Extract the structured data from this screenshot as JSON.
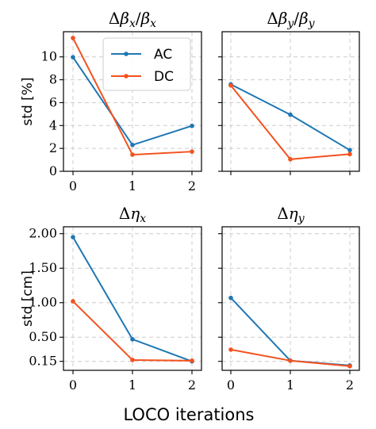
{
  "figure": {
    "xlabel": "LOCO iterations"
  },
  "legend": {
    "entries": [
      {
        "name": "AC",
        "color": "#1f77b4"
      },
      {
        "name": "DC",
        "color": "#f4511e"
      }
    ]
  },
  "chart_data": [
    {
      "type": "line",
      "title": "Δβx/βx",
      "ylabel": "std [%]",
      "x": [
        0,
        1,
        2
      ],
      "xticks": [
        "0",
        "1",
        "2"
      ],
      "ylim": [
        0,
        12.2
      ],
      "yticks": [
        0,
        2,
        4,
        6,
        8,
        10
      ],
      "ytick_labels": [
        "0",
        "2",
        "4",
        "6",
        "8",
        "10"
      ],
      "grid": true,
      "legend_position": "top-right",
      "series": [
        {
          "name": "AC",
          "color": "#1f77b4",
          "values": [
            9.97,
            2.3,
            3.97
          ]
        },
        {
          "name": "DC",
          "color": "#f4511e",
          "values": [
            11.65,
            1.45,
            1.72
          ]
        }
      ]
    },
    {
      "type": "line",
      "title": "Δβy/βy",
      "x": [
        0,
        1,
        2
      ],
      "xticks": [],
      "ylim": [
        0,
        12.2
      ],
      "yticks": [
        0,
        2,
        4,
        6,
        8,
        10
      ],
      "ytick_labels": [],
      "grid": true,
      "series": [
        {
          "name": "AC",
          "color": "#1f77b4",
          "values": [
            7.6,
            4.95,
            1.85
          ]
        },
        {
          "name": "DC",
          "color": "#f4511e",
          "values": [
            7.5,
            1.05,
            1.5
          ]
        }
      ]
    },
    {
      "type": "line",
      "title": "Δηx",
      "ylabel": "std [cm]",
      "x": [
        0,
        1,
        2
      ],
      "xticks": [
        "0",
        "1",
        "2"
      ],
      "ylim": [
        0.02,
        2.1
      ],
      "yticks": [
        0.15,
        0.5,
        1.0,
        1.5,
        2.0
      ],
      "ytick_labels": [
        "0.15",
        "0.50",
        "1.00",
        "1.50",
        "2.00"
      ],
      "grid": true,
      "series": [
        {
          "name": "AC",
          "color": "#1f77b4",
          "values": [
            1.95,
            0.47,
            0.15
          ]
        },
        {
          "name": "DC",
          "color": "#f4511e",
          "values": [
            1.02,
            0.17,
            0.16
          ]
        }
      ]
    },
    {
      "type": "line",
      "title": "Δηy",
      "x": [
        0,
        1,
        2
      ],
      "xticks": [
        "0",
        "1",
        "2"
      ],
      "ylim": [
        0.02,
        2.1
      ],
      "yticks": [
        0.15,
        0.5,
        1.0,
        1.5,
        2.0
      ],
      "ytick_labels": [],
      "grid": true,
      "series": [
        {
          "name": "AC",
          "color": "#1f77b4",
          "values": [
            1.07,
            0.16,
            0.09
          ]
        },
        {
          "name": "DC",
          "color": "#f4511e",
          "values": [
            0.32,
            0.16,
            0.08
          ]
        }
      ]
    }
  ]
}
